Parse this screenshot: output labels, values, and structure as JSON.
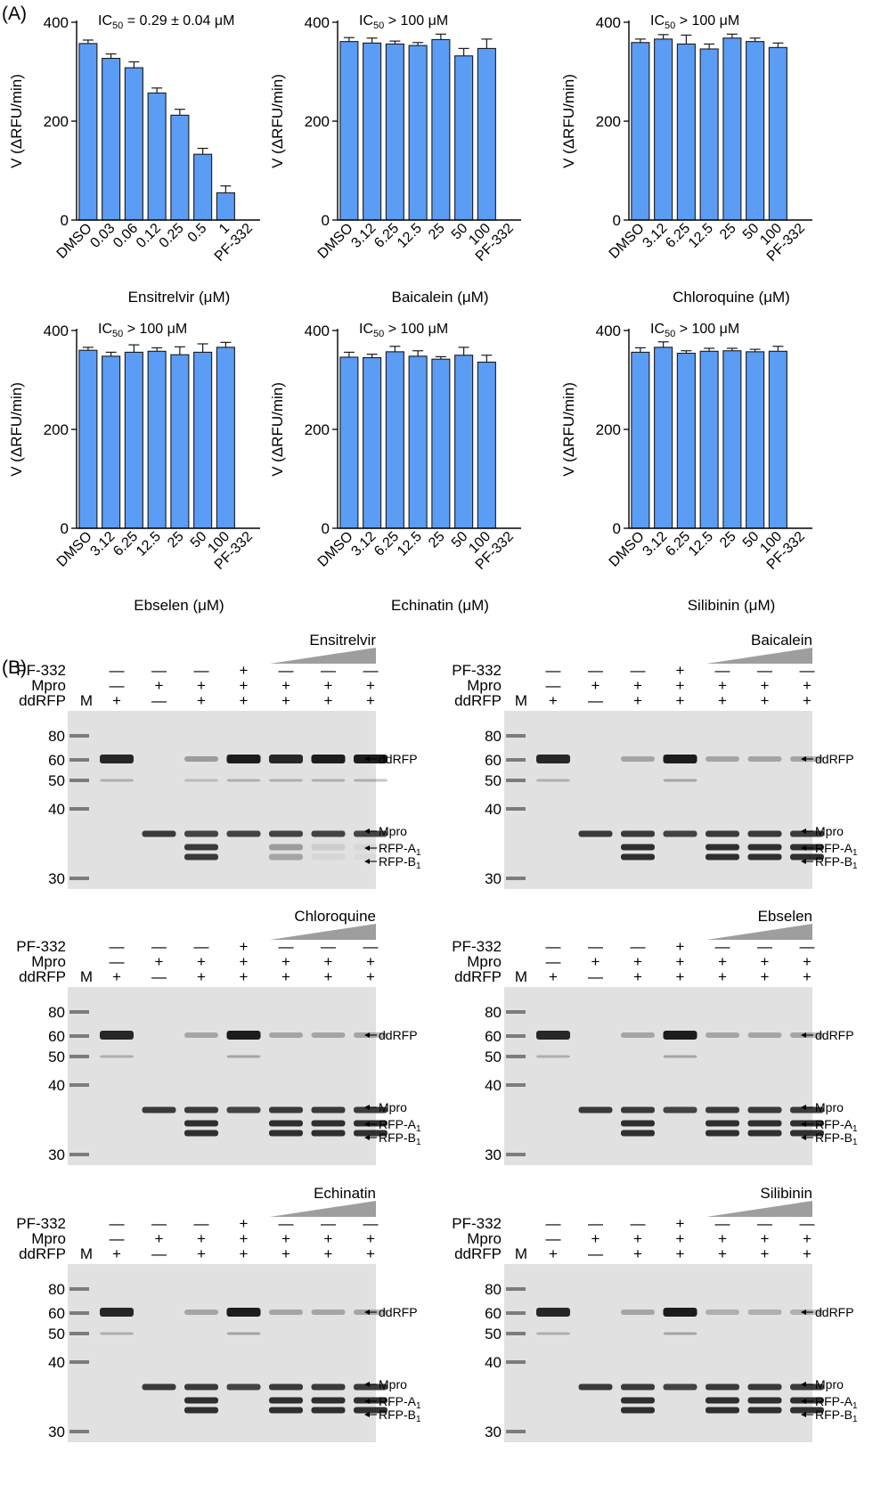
{
  "panel_labels": {
    "a": "(A)",
    "b": "(B)"
  },
  "chart_data": [
    {
      "type": "bar",
      "ylabel": "V (ΔRFU/min)",
      "xlabel": "Ensitrelvir (μM)",
      "annotation": {
        "prefix": "IC",
        "sub": "50",
        "suffix": " = 0.29 ± 0.04 μM"
      },
      "categories": [
        "DMSO",
        "0.03",
        "0.06",
        "0.12",
        "0.25",
        "0.5",
        "1",
        "PF-332"
      ],
      "values": [
        357,
        327,
        308,
        257,
        212,
        133,
        55,
        0
      ],
      "errors": [
        7,
        9,
        12,
        10,
        12,
        12,
        14,
        0
      ],
      "ylim": [
        0,
        400
      ],
      "yticks": [
        0,
        200,
        400
      ],
      "color": "#5b9cf5"
    },
    {
      "type": "bar",
      "ylabel": "V (ΔRFU/min)",
      "xlabel": "Baicalein (μM)",
      "annotation": {
        "prefix": "IC",
        "sub": "50",
        "suffix": " > 100 μM"
      },
      "categories": [
        "DMSO",
        "3.12",
        "6.25",
        "12.5",
        "25",
        "50",
        "100",
        "PF-332"
      ],
      "values": [
        361,
        358,
        356,
        353,
        365,
        332,
        347,
        0
      ],
      "errors": [
        8,
        10,
        6,
        6,
        11,
        15,
        19,
        0
      ],
      "ylim": [
        0,
        400
      ],
      "yticks": [
        0,
        200,
        400
      ],
      "color": "#5b9cf5"
    },
    {
      "type": "bar",
      "ylabel": "V (ΔRFU/min)",
      "xlabel": "Chloroquine (μM)",
      "annotation": {
        "prefix": "IC",
        "sub": "50",
        "suffix": " > 100 μM"
      },
      "categories": [
        "DMSO",
        "3.12",
        "6.25",
        "12.5",
        "25",
        "50",
        "100",
        "PF-332"
      ],
      "values": [
        359,
        366,
        356,
        346,
        368,
        361,
        349,
        0
      ],
      "errors": [
        7,
        9,
        18,
        10,
        8,
        7,
        9,
        0
      ],
      "ylim": [
        0,
        400
      ],
      "yticks": [
        0,
        200,
        400
      ],
      "color": "#5b9cf5"
    },
    {
      "type": "bar",
      "ylabel": "V (ΔRFU/min)",
      "xlabel": "Ebselen (μM)",
      "annotation": {
        "prefix": "IC",
        "sub": "50",
        "suffix": " > 100 μM"
      },
      "categories": [
        "DMSO",
        "3.12",
        "6.25",
        "12.5",
        "25",
        "50",
        "100",
        "PF-332"
      ],
      "values": [
        360,
        348,
        356,
        358,
        351,
        356,
        366,
        0
      ],
      "errors": [
        6,
        8,
        15,
        7,
        16,
        17,
        10,
        0
      ],
      "ylim": [
        0,
        400
      ],
      "yticks": [
        0,
        200,
        400
      ],
      "color": "#5b9cf5"
    },
    {
      "type": "bar",
      "ylabel": "V (ΔRFU/min)",
      "xlabel": "Echinatin (μM)",
      "annotation": {
        "prefix": "IC",
        "sub": "50",
        "suffix": " > 100 μM"
      },
      "categories": [
        "DMSO",
        "3.12",
        "6.25",
        "12.5",
        "25",
        "50",
        "100",
        "PF-332"
      ],
      "values": [
        346,
        345,
        357,
        348,
        342,
        350,
        336,
        0
      ],
      "errors": [
        10,
        7,
        11,
        11,
        5,
        16,
        14,
        0
      ],
      "ylim": [
        0,
        400
      ],
      "yticks": [
        0,
        200,
        400
      ],
      "color": "#5b9cf5"
    },
    {
      "type": "bar",
      "ylabel": "V (ΔRFU/min)",
      "xlabel": "Silibinin (μM)",
      "annotation": {
        "prefix": "IC",
        "sub": "50",
        "suffix": " > 100 μM"
      },
      "categories": [
        "DMSO",
        "3.12",
        "6.25",
        "12.5",
        "25",
        "50",
        "100",
        "PF-332"
      ],
      "values": [
        356,
        366,
        354,
        358,
        359,
        357,
        358,
        0
      ],
      "errors": [
        9,
        11,
        5,
        6,
        5,
        5,
        10,
        0
      ],
      "ylim": [
        0,
        400
      ],
      "yticks": [
        0,
        200,
        400
      ],
      "color": "#5b9cf5"
    }
  ],
  "gels": {
    "row_labels": [
      "PF-332",
      "Mpro",
      "ddRFP"
    ],
    "marker_lane_label": "M",
    "minus_sign": "—",
    "plus_sign": "+",
    "lane_signs": [
      [
        "—",
        "—",
        "—",
        "+",
        "—",
        "—",
        "—"
      ],
      [
        "—",
        "+",
        "+",
        "+",
        "+",
        "+",
        "+"
      ],
      [
        "+",
        "—",
        "+",
        "+",
        "+",
        "+",
        "+"
      ]
    ],
    "markers": [
      "80",
      "60",
      "50",
      "40",
      "30"
    ],
    "band_labels": {
      "ddrfp": "ddRFP",
      "mpro": "Mpro",
      "rfp_a": "RFP-A",
      "rfp_b": "RFP-B",
      "sub": "1"
    },
    "panels": [
      {
        "compound": "Ensitrelvir",
        "lanes": [
          {
            "ddrfp": 0.95,
            "mpro": 0,
            "a": 0,
            "b": 0,
            "minor": 0.25
          },
          {
            "ddrfp": 0,
            "mpro": 0.85,
            "a": 0,
            "b": 0,
            "minor": 0
          },
          {
            "ddrfp": 0.35,
            "mpro": 0.8,
            "a": 0.85,
            "b": 0.85,
            "minor": 0.2
          },
          {
            "ddrfp": 1,
            "mpro": 0.8,
            "a": 0,
            "b": 0,
            "minor": 0.25
          },
          {
            "ddrfp": 0.95,
            "mpro": 0.8,
            "a": 0.35,
            "b": 0.3,
            "minor": 0.25
          },
          {
            "ddrfp": 1,
            "mpro": 0.8,
            "a": 0.1,
            "b": 0.05,
            "minor": 0.25
          },
          {
            "ddrfp": 1,
            "mpro": 0.8,
            "a": 0.05,
            "b": 0.03,
            "minor": 0.25
          }
        ]
      },
      {
        "compound": "Baicalein",
        "lanes": [
          {
            "ddrfp": 0.95,
            "mpro": 0,
            "a": 0,
            "b": 0,
            "minor": 0.25
          },
          {
            "ddrfp": 0,
            "mpro": 0.85,
            "a": 0,
            "b": 0,
            "minor": 0
          },
          {
            "ddrfp": 0.3,
            "mpro": 0.85,
            "a": 0.9,
            "b": 0.9,
            "minor": 0
          },
          {
            "ddrfp": 1,
            "mpro": 0.8,
            "a": 0,
            "b": 0,
            "minor": 0.3
          },
          {
            "ddrfp": 0.3,
            "mpro": 0.85,
            "a": 0.9,
            "b": 0.9,
            "minor": 0
          },
          {
            "ddrfp": 0.3,
            "mpro": 0.85,
            "a": 0.9,
            "b": 0.9,
            "minor": 0
          },
          {
            "ddrfp": 0.3,
            "mpro": 0.85,
            "a": 0.9,
            "b": 0.9,
            "minor": 0
          }
        ]
      },
      {
        "compound": "Chloroquine",
        "lanes": [
          {
            "ddrfp": 0.95,
            "mpro": 0,
            "a": 0,
            "b": 0,
            "minor": 0.25
          },
          {
            "ddrfp": 0,
            "mpro": 0.85,
            "a": 0,
            "b": 0,
            "minor": 0
          },
          {
            "ddrfp": 0.3,
            "mpro": 0.85,
            "a": 0.9,
            "b": 0.9,
            "minor": 0
          },
          {
            "ddrfp": 1,
            "mpro": 0.8,
            "a": 0,
            "b": 0,
            "minor": 0.3
          },
          {
            "ddrfp": 0.3,
            "mpro": 0.85,
            "a": 0.9,
            "b": 0.9,
            "minor": 0
          },
          {
            "ddrfp": 0.3,
            "mpro": 0.85,
            "a": 0.9,
            "b": 0.9,
            "minor": 0
          },
          {
            "ddrfp": 0.3,
            "mpro": 0.85,
            "a": 0.9,
            "b": 0.9,
            "minor": 0
          }
        ]
      },
      {
        "compound": "Ebselen",
        "lanes": [
          {
            "ddrfp": 0.95,
            "mpro": 0,
            "a": 0,
            "b": 0,
            "minor": 0.25
          },
          {
            "ddrfp": 0,
            "mpro": 0.85,
            "a": 0,
            "b": 0,
            "minor": 0
          },
          {
            "ddrfp": 0.3,
            "mpro": 0.85,
            "a": 0.9,
            "b": 0.9,
            "minor": 0
          },
          {
            "ddrfp": 1,
            "mpro": 0.8,
            "a": 0,
            "b": 0,
            "minor": 0.3
          },
          {
            "ddrfp": 0.3,
            "mpro": 0.85,
            "a": 0.9,
            "b": 0.9,
            "minor": 0
          },
          {
            "ddrfp": 0.3,
            "mpro": 0.85,
            "a": 0.9,
            "b": 0.9,
            "minor": 0
          },
          {
            "ddrfp": 0.3,
            "mpro": 0.85,
            "a": 0.9,
            "b": 0.9,
            "minor": 0
          }
        ]
      },
      {
        "compound": "Echinatin",
        "lanes": [
          {
            "ddrfp": 0.95,
            "mpro": 0,
            "a": 0,
            "b": 0,
            "minor": 0.25
          },
          {
            "ddrfp": 0,
            "mpro": 0.85,
            "a": 0,
            "b": 0,
            "minor": 0
          },
          {
            "ddrfp": 0.3,
            "mpro": 0.85,
            "a": 0.9,
            "b": 0.9,
            "minor": 0
          },
          {
            "ddrfp": 1,
            "mpro": 0.8,
            "a": 0,
            "b": 0,
            "minor": 0.3
          },
          {
            "ddrfp": 0.3,
            "mpro": 0.85,
            "a": 0.9,
            "b": 0.9,
            "minor": 0
          },
          {
            "ddrfp": 0.3,
            "mpro": 0.85,
            "a": 0.9,
            "b": 0.9,
            "minor": 0
          },
          {
            "ddrfp": 0.3,
            "mpro": 0.85,
            "a": 0.9,
            "b": 0.9,
            "minor": 0
          }
        ]
      },
      {
        "compound": "Silibinin",
        "lanes": [
          {
            "ddrfp": 0.95,
            "mpro": 0,
            "a": 0,
            "b": 0,
            "minor": 0.25
          },
          {
            "ddrfp": 0,
            "mpro": 0.85,
            "a": 0,
            "b": 0,
            "minor": 0
          },
          {
            "ddrfp": 0.3,
            "mpro": 0.85,
            "a": 0.9,
            "b": 0.9,
            "minor": 0
          },
          {
            "ddrfp": 1,
            "mpro": 0.8,
            "a": 0,
            "b": 0,
            "minor": 0.3
          },
          {
            "ddrfp": 0.25,
            "mpro": 0.85,
            "a": 0.9,
            "b": 0.9,
            "minor": 0
          },
          {
            "ddrfp": 0.25,
            "mpro": 0.85,
            "a": 0.9,
            "b": 0.9,
            "minor": 0
          },
          {
            "ddrfp": 0.25,
            "mpro": 0.85,
            "a": 0.9,
            "b": 0.9,
            "minor": 0
          }
        ]
      }
    ]
  }
}
